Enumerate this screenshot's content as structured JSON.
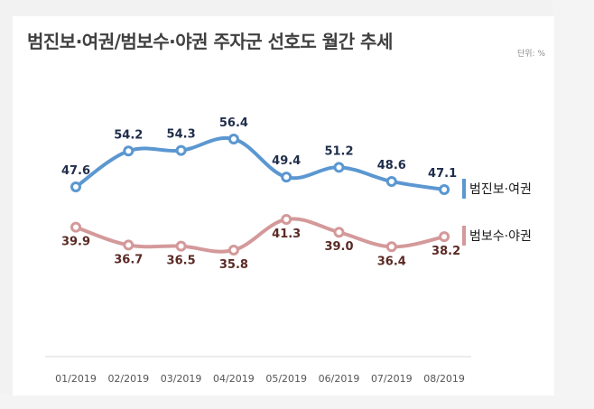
{
  "chart_title": "범진보·여권/범보수·야권 주자군 선호도 월간 추세",
  "unit_label": "단위: %",
  "colors": {
    "progressive": "#5b97d1",
    "progressive_label": "#1f2d4a",
    "conservative": "#d4999a",
    "conservative_label": "#5a2a25",
    "axis_line": "#d9d9d9"
  },
  "chart_data": {
    "type": "line",
    "title": "범진보·여권/범보수·야권 주자군 선호도 월간 추세",
    "unit": "%",
    "categories": [
      "01/2019",
      "02/2019",
      "03/2019",
      "04/2019",
      "05/2019",
      "06/2019",
      "07/2019",
      "08/2019"
    ],
    "series": [
      {
        "name": "범진보·여권",
        "values": [
          47.6,
          54.2,
          54.3,
          56.4,
          49.4,
          51.2,
          48.6,
          47.1
        ]
      },
      {
        "name": "범보수·야권",
        "values": [
          39.9,
          36.7,
          36.5,
          35.8,
          41.3,
          39.0,
          36.4,
          38.2
        ]
      }
    ],
    "grid": false,
    "legend_position": "right-end-of-lines",
    "data_labels": true
  }
}
